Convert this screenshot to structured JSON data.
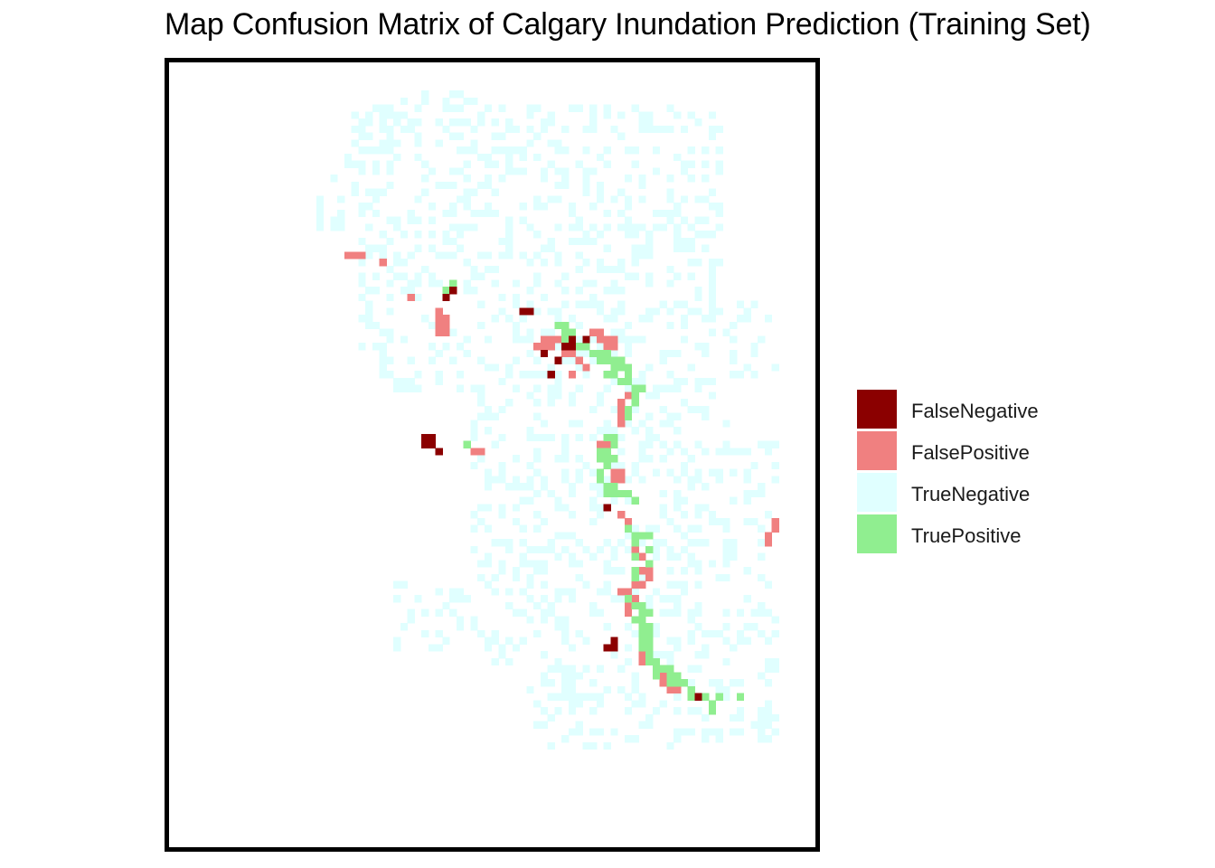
{
  "title": "Map Confusion Matrix of Calgary Inundation Prediction (Training Set)",
  "legend": {
    "items": [
      {
        "label": "FalseNegative",
        "color": "#8B0000"
      },
      {
        "label": "FalsePositive",
        "color": "#F08080"
      },
      {
        "label": "TrueNegative",
        "color": "#E0FFFF"
      },
      {
        "label": "TruePositive",
        "color": "#90EE90"
      }
    ]
  },
  "map": {
    "type": "categorical-grid",
    "background_class": "TrueNegative",
    "grid_cells": {
      "cols": 82,
      "rows": 99
    },
    "extent_rows": [
      [
        4,
        33,
        45
      ],
      [
        5,
        33,
        45
      ],
      [
        6,
        29,
        75
      ],
      [
        7,
        25,
        78
      ],
      [
        8,
        25,
        78
      ],
      [
        9,
        25,
        78
      ],
      [
        10,
        25,
        78
      ],
      [
        11,
        25,
        78
      ],
      [
        12,
        25,
        78
      ],
      [
        13,
        25,
        78
      ],
      [
        14,
        25,
        78
      ],
      [
        15,
        25,
        78
      ],
      [
        16,
        23,
        78
      ],
      [
        17,
        23,
        78
      ],
      [
        18,
        21,
        78
      ],
      [
        19,
        21,
        78
      ],
      [
        20,
        21,
        78
      ],
      [
        21,
        21,
        78
      ],
      [
        22,
        21,
        78
      ],
      [
        23,
        21,
        78
      ],
      [
        24,
        21,
        78
      ],
      [
        25,
        21,
        78
      ],
      [
        26,
        23,
        78
      ],
      [
        27,
        25,
        78
      ],
      [
        28,
        25,
        78
      ],
      [
        29,
        27,
        78
      ],
      [
        30,
        27,
        78
      ],
      [
        31,
        27,
        78
      ],
      [
        32,
        27,
        78
      ],
      [
        33,
        27,
        78
      ],
      [
        34,
        27,
        86
      ],
      [
        35,
        27,
        86
      ],
      [
        36,
        27,
        86
      ],
      [
        37,
        27,
        86
      ],
      [
        38,
        27,
        86
      ],
      [
        39,
        27,
        86
      ],
      [
        40,
        27,
        86
      ],
      [
        41,
        27,
        86
      ],
      [
        42,
        27,
        86
      ],
      [
        43,
        27,
        86
      ],
      [
        44,
        27,
        86
      ],
      [
        45,
        27,
        79
      ],
      [
        46,
        29,
        79
      ],
      [
        47,
        43,
        79
      ],
      [
        48,
        43,
        79
      ],
      [
        49,
        43,
        79
      ],
      [
        50,
        43,
        79
      ],
      [
        51,
        43,
        79
      ],
      [
        52,
        43,
        79
      ],
      [
        53,
        43,
        79
      ],
      [
        54,
        43,
        86
      ],
      [
        55,
        43,
        86
      ],
      [
        56,
        43,
        86
      ],
      [
        57,
        43,
        86
      ],
      [
        58,
        43,
        86
      ],
      [
        59,
        43,
        86
      ],
      [
        60,
        43,
        86
      ],
      [
        61,
        43,
        86
      ],
      [
        62,
        43,
        86
      ],
      [
        63,
        43,
        86
      ],
      [
        64,
        43,
        86
      ],
      [
        65,
        43,
        86
      ],
      [
        66,
        43,
        86
      ],
      [
        67,
        43,
        84
      ],
      [
        68,
        43,
        84
      ],
      [
        69,
        43,
        84
      ],
      [
        70,
        43,
        84
      ],
      [
        71,
        43,
        84
      ],
      [
        72,
        43,
        84
      ],
      [
        73,
        43,
        84
      ],
      [
        74,
        32,
        86
      ],
      [
        75,
        32,
        86
      ],
      [
        76,
        32,
        86
      ],
      [
        77,
        32,
        86
      ],
      [
        78,
        32,
        86
      ],
      [
        79,
        32,
        86
      ],
      [
        80,
        32,
        86
      ],
      [
        81,
        32,
        86
      ],
      [
        82,
        32,
        86
      ],
      [
        83,
        32,
        86
      ],
      [
        84,
        46,
        86
      ],
      [
        85,
        46,
        86
      ],
      [
        86,
        50,
        86
      ],
      [
        87,
        50,
        86
      ],
      [
        88,
        50,
        86
      ],
      [
        89,
        50,
        86
      ],
      [
        90,
        50,
        86
      ],
      [
        91,
        52,
        86
      ],
      [
        92,
        52,
        86
      ],
      [
        93,
        52,
        86
      ],
      [
        94,
        52,
        86
      ],
      [
        95,
        52,
        86
      ],
      [
        96,
        52,
        86
      ],
      [
        97,
        52,
        76
      ]
    ],
    "false_negative": [
      [
        32,
        40
      ],
      [
        33,
        39
      ],
      [
        35,
        50
      ],
      [
        35,
        51
      ],
      [
        39,
        57
      ],
      [
        39,
        59
      ],
      [
        40,
        56
      ],
      [
        40,
        57
      ],
      [
        41,
        53
      ],
      [
        42,
        55
      ],
      [
        44,
        54
      ],
      [
        53,
        36
      ],
      [
        53,
        37
      ],
      [
        54,
        36
      ],
      [
        54,
        37
      ],
      [
        55,
        38
      ],
      [
        63,
        62
      ],
      [
        82,
        63
      ],
      [
        83,
        62
      ],
      [
        83,
        63
      ],
      [
        90,
        75
      ]
    ],
    "false_positive": [
      [
        27,
        25
      ],
      [
        27,
        26
      ],
      [
        27,
        27
      ],
      [
        28,
        30
      ],
      [
        31,
        40
      ],
      [
        32,
        39
      ],
      [
        33,
        34
      ],
      [
        35,
        38
      ],
      [
        36,
        38
      ],
      [
        36,
        39
      ],
      [
        37,
        38
      ],
      [
        37,
        39
      ],
      [
        38,
        38
      ],
      [
        38,
        39
      ],
      [
        38,
        60
      ],
      [
        38,
        61
      ],
      [
        39,
        53
      ],
      [
        39,
        54
      ],
      [
        39,
        55
      ],
      [
        39,
        61
      ],
      [
        39,
        62
      ],
      [
        39,
        63
      ],
      [
        40,
        52
      ],
      [
        40,
        53
      ],
      [
        40,
        54
      ],
      [
        40,
        62
      ],
      [
        40,
        63
      ],
      [
        41,
        56
      ],
      [
        41,
        57
      ],
      [
        42,
        58
      ],
      [
        43,
        59
      ],
      [
        44,
        57
      ],
      [
        47,
        65
      ],
      [
        48,
        64
      ],
      [
        49,
        64
      ],
      [
        49,
        65
      ],
      [
        50,
        64
      ],
      [
        51,
        64
      ],
      [
        54,
        61
      ],
      [
        54,
        62
      ],
      [
        55,
        61
      ],
      [
        55,
        43
      ],
      [
        55,
        44
      ],
      [
        56,
        62
      ],
      [
        58,
        63
      ],
      [
        58,
        64
      ],
      [
        59,
        63
      ],
      [
        59,
        64
      ],
      [
        64,
        64
      ],
      [
        65,
        65
      ],
      [
        65,
        86
      ],
      [
        66,
        86
      ],
      [
        67,
        85
      ],
      [
        68,
        85
      ],
      [
        69,
        66
      ],
      [
        70,
        67
      ],
      [
        72,
        67
      ],
      [
        72,
        68
      ],
      [
        73,
        68
      ],
      [
        74,
        66
      ],
      [
        74,
        67
      ],
      [
        75,
        64
      ],
      [
        75,
        65
      ],
      [
        76,
        66
      ],
      [
        77,
        65
      ],
      [
        78,
        65
      ],
      [
        84,
        67
      ],
      [
        85,
        67
      ],
      [
        87,
        70
      ],
      [
        88,
        70
      ],
      [
        89,
        71
      ],
      [
        89,
        72
      ]
    ],
    "true_positive": [
      [
        31,
        40
      ],
      [
        32,
        39
      ],
      [
        37,
        55
      ],
      [
        37,
        56
      ],
      [
        38,
        56
      ],
      [
        38,
        57
      ],
      [
        39,
        56
      ],
      [
        39,
        57
      ],
      [
        40,
        58
      ],
      [
        40,
        59
      ],
      [
        41,
        60
      ],
      [
        41,
        61
      ],
      [
        41,
        62
      ],
      [
        42,
        61
      ],
      [
        42,
        62
      ],
      [
        42,
        63
      ],
      [
        42,
        64
      ],
      [
        43,
        63
      ],
      [
        43,
        64
      ],
      [
        43,
        65
      ],
      [
        44,
        62
      ],
      [
        44,
        63
      ],
      [
        44,
        65
      ],
      [
        45,
        64
      ],
      [
        45,
        65
      ],
      [
        46,
        66
      ],
      [
        46,
        67
      ],
      [
        47,
        66
      ],
      [
        48,
        66
      ],
      [
        49,
        65
      ],
      [
        50,
        65
      ],
      [
        53,
        62
      ],
      [
        53,
        63
      ],
      [
        54,
        42
      ],
      [
        54,
        63
      ],
      [
        55,
        61
      ],
      [
        55,
        62
      ],
      [
        56,
        61
      ],
      [
        56,
        62
      ],
      [
        56,
        63
      ],
      [
        57,
        62
      ],
      [
        58,
        61
      ],
      [
        59,
        61
      ],
      [
        60,
        62
      ],
      [
        60,
        63
      ],
      [
        61,
        62
      ],
      [
        61,
        63
      ],
      [
        61,
        64
      ],
      [
        61,
        65
      ],
      [
        62,
        66
      ],
      [
        66,
        65
      ],
      [
        67,
        66
      ],
      [
        67,
        67
      ],
      [
        67,
        68
      ],
      [
        68,
        66
      ],
      [
        69,
        68
      ],
      [
        70,
        66
      ],
      [
        71,
        68
      ],
      [
        72,
        66
      ],
      [
        73,
        66
      ],
      [
        76,
        65
      ],
      [
        77,
        66
      ],
      [
        77,
        67
      ],
      [
        78,
        67
      ],
      [
        78,
        68
      ],
      [
        79,
        66
      ],
      [
        79,
        67
      ],
      [
        80,
        67
      ],
      [
        80,
        68
      ],
      [
        81,
        67
      ],
      [
        81,
        68
      ],
      [
        82,
        67
      ],
      [
        82,
        68
      ],
      [
        83,
        67
      ],
      [
        83,
        68
      ],
      [
        84,
        68
      ],
      [
        85,
        68
      ],
      [
        85,
        69
      ],
      [
        86,
        69
      ],
      [
        86,
        70
      ],
      [
        86,
        71
      ],
      [
        87,
        69
      ],
      [
        87,
        71
      ],
      [
        87,
        72
      ],
      [
        88,
        71
      ],
      [
        88,
        72
      ],
      [
        88,
        73
      ],
      [
        89,
        74
      ],
      [
        90,
        74
      ],
      [
        90,
        76
      ],
      [
        90,
        78
      ],
      [
        90,
        81
      ],
      [
        91,
        77
      ],
      [
        92,
        77
      ]
    ]
  }
}
